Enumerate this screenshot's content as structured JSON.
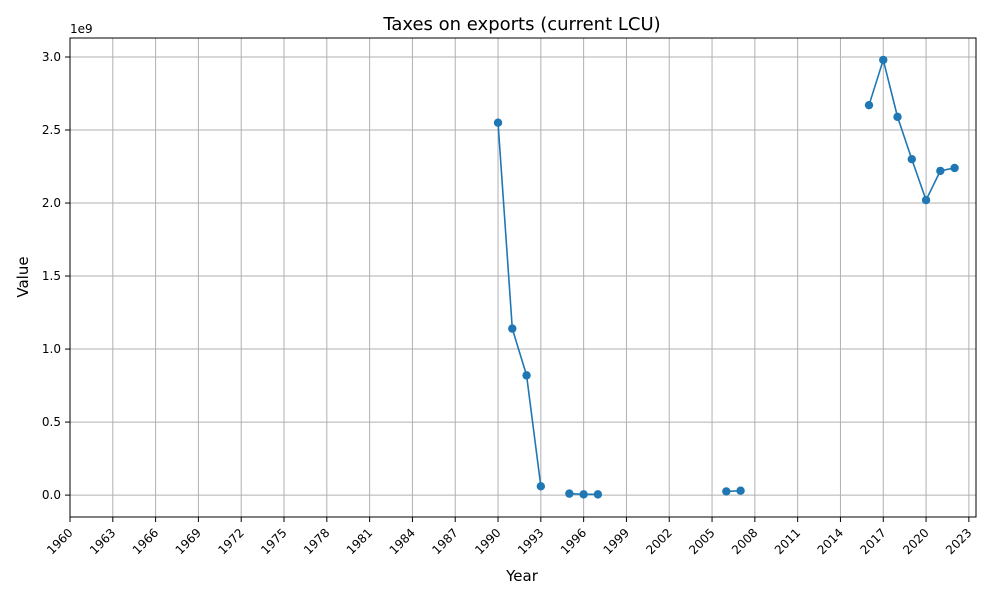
{
  "chart_data": {
    "type": "line",
    "title": "Taxes on exports (current LCU)",
    "xlabel": "Year",
    "ylabel": "Value",
    "y_offset_label": "1e9",
    "xlim": [
      1960,
      2023.5
    ],
    "ylim": [
      -0.15,
      3.13
    ],
    "y_scale_multiplier": 1000000000,
    "x_ticks": [
      1960,
      1963,
      1966,
      1969,
      1972,
      1975,
      1978,
      1981,
      1984,
      1987,
      1990,
      1993,
      1996,
      1999,
      2002,
      2005,
      2008,
      2011,
      2014,
      2017,
      2020,
      2023
    ],
    "y_ticks": [
      0.0,
      0.5,
      1.0,
      1.5,
      2.0,
      2.5,
      3.0
    ],
    "y_tick_labels": [
      "0.0",
      "0.5",
      "1.0",
      "1.5",
      "2.0",
      "2.5",
      "3.0"
    ],
    "grid": true,
    "marker": "circle",
    "color": "#1f77b4",
    "series": [
      {
        "segments": [
          {
            "x": [
              1990,
              1991,
              1992,
              1993
            ],
            "y": [
              2.55,
              1.14,
              0.82,
              0.06
            ]
          },
          {
            "x": [
              1995,
              1996,
              1997
            ],
            "y": [
              0.01,
              0.005,
              0.005
            ]
          },
          {
            "x": [
              2006,
              2007
            ],
            "y": [
              0.025,
              0.03
            ]
          },
          {
            "x": [
              2016,
              2017,
              2018,
              2019,
              2020,
              2021,
              2022
            ],
            "y": [
              2.67,
              2.98,
              2.59,
              2.3,
              2.02,
              2.22,
              2.24
            ]
          }
        ]
      }
    ]
  }
}
